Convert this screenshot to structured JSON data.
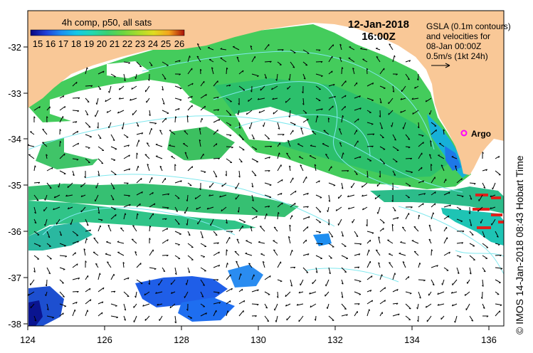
{
  "colorbar": {
    "title": "4h comp, p50, all sats",
    "ticks": [
      "15",
      "16",
      "17",
      "18",
      "19",
      "20",
      "21",
      "22",
      "23",
      "24",
      "25",
      "26"
    ],
    "colors": [
      "#08057e",
      "#1f3fd8",
      "#1e8ef0",
      "#14c8e6",
      "#22d8b0",
      "#3ad070",
      "#6cd640",
      "#a8dc2c",
      "#e0dc20",
      "#f4a41c",
      "#e05a14",
      "#a81008"
    ]
  },
  "datetime": {
    "date": "12-Jan-2018",
    "time": "16:00Z"
  },
  "gsla_note": {
    "line1": "GSLA (0.1m contours)",
    "line2": "and velocities for",
    "line3": "08-Jan 00:00Z",
    "line4": "0.5m/s (1kt 24h)"
  },
  "argo": {
    "label": "Argo",
    "color": "#ff00ff"
  },
  "credit": "© IMOS 14-Jan-2018 08:43 Hobart Time",
  "axes": {
    "x_ticks": [
      "124",
      "126",
      "128",
      "130",
      "132",
      "134",
      "136"
    ],
    "y_ticks": [
      "-32",
      "-33",
      "-34",
      "-35",
      "-36",
      "-37",
      "-38"
    ]
  },
  "colors": {
    "land": "#f9c897",
    "ocean_nodata": "#ffffff",
    "contour": "#7fe8ee"
  }
}
